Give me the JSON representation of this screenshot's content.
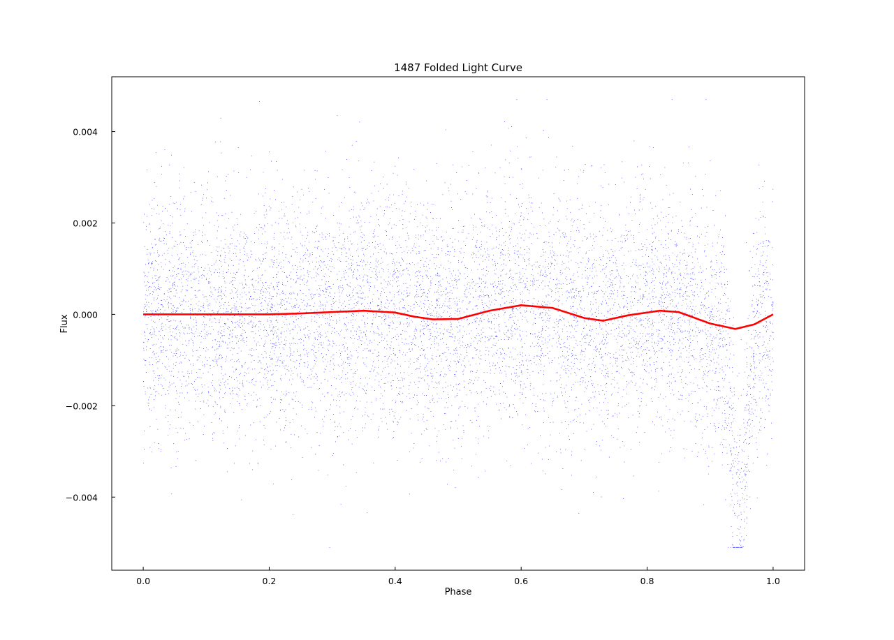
{
  "chart_data": {
    "type": "scatter",
    "title": "1487 Folded Light Curve",
    "xlabel": "Phase",
    "ylabel": "Flux",
    "xlim": [
      -0.05,
      1.05
    ],
    "ylim": [
      -0.0056,
      0.0052
    ],
    "grid": false,
    "legend": "none",
    "x_ticks": [
      0.0,
      0.2,
      0.4,
      0.6,
      0.8,
      1.0
    ],
    "x_tick_labels": [
      "0.0",
      "0.2",
      "0.4",
      "0.6",
      "0.8",
      "1.0"
    ],
    "y_ticks": [
      -0.004,
      -0.002,
      0.0,
      0.002,
      0.004
    ],
    "y_tick_labels": [
      "−0.004",
      "−0.002",
      "0.000",
      "0.002",
      "0.004"
    ],
    "scatter_color": "#0000ff",
    "model_color": "#ff0000",
    "scatter_summary": {
      "point_count_approx": 9000,
      "phase_range": [
        0.0,
        1.0
      ],
      "scatter_std": 0.0013,
      "dip_center_phase": 0.945,
      "dip_depth": -0.004,
      "dip_half_width_phase": 0.012
    },
    "series": [
      {
        "style": "line",
        "x": [
          0.0,
          0.05,
          0.1,
          0.15,
          0.2,
          0.25,
          0.3,
          0.35,
          0.4,
          0.43,
          0.46,
          0.5,
          0.55,
          0.6,
          0.65,
          0.7,
          0.73,
          0.77,
          0.82,
          0.85,
          0.9,
          0.94,
          0.97,
          1.0
        ],
        "y": [
          0.0,
          0.0,
          0.0,
          0.0,
          0.0,
          2e-05,
          5e-05,
          8e-05,
          4e-05,
          -5e-05,
          -0.00011,
          -0.0001,
          8e-05,
          0.0002,
          0.00014,
          -8e-05,
          -0.00014,
          -2e-05,
          8e-05,
          5e-05,
          -0.0002,
          -0.00032,
          -0.00022,
          0.0
        ]
      }
    ]
  }
}
